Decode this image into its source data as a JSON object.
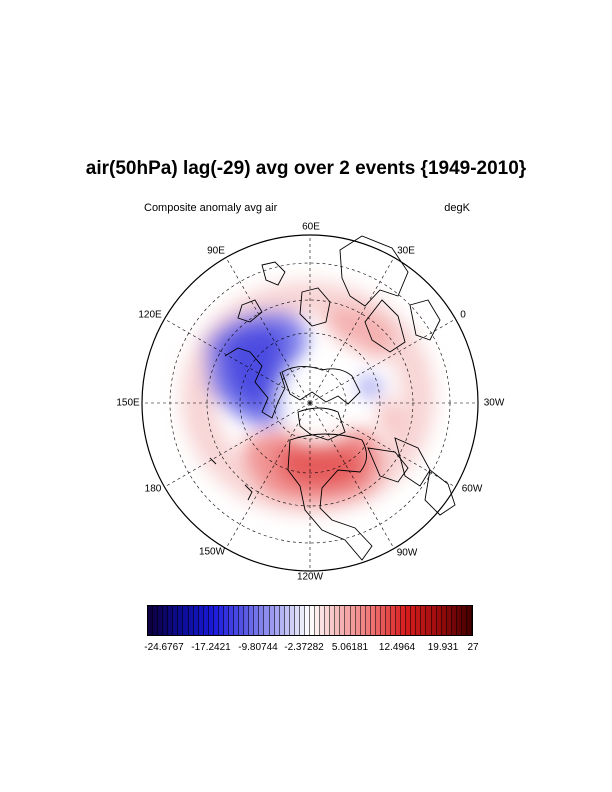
{
  "title": "air(50hPa) lag(-29) avg over 2 events {1949-2010}",
  "left_subtitle": "Composite anomaly avg air",
  "right_subtitle": "degK",
  "longitude_labels": [
    "60E",
    "30E",
    "0",
    "30W",
    "60W",
    "90W",
    "120W",
    "150W",
    "180",
    "150E",
    "120E",
    "90E"
  ],
  "colorbar": {
    "tick_labels": [
      "-24.6767",
      "-17.2421",
      "-9.80744",
      "-2.37282",
      "5.06181",
      "12.4964",
      "19.931",
      "27"
    ],
    "min": -24.6767,
    "max": 27,
    "palette": [
      "#0c0040",
      "#0c0d96",
      "#1a1adb",
      "#5a5ae6",
      "#a9a9f2",
      "#ffffff",
      "#f5b3b3",
      "#ef6f6f",
      "#d81e1e",
      "#9e0c0c",
      "#4a0000"
    ]
  },
  "chart_data": {
    "type": "heatmap",
    "title": "air(50hPa) lag(-29) avg over 2 events {1949-2010}",
    "subtitle": "Composite anomaly avg air",
    "units": "degK",
    "projection": "north polar stereographic",
    "range": [
      -24.6767,
      27
    ]
  }
}
